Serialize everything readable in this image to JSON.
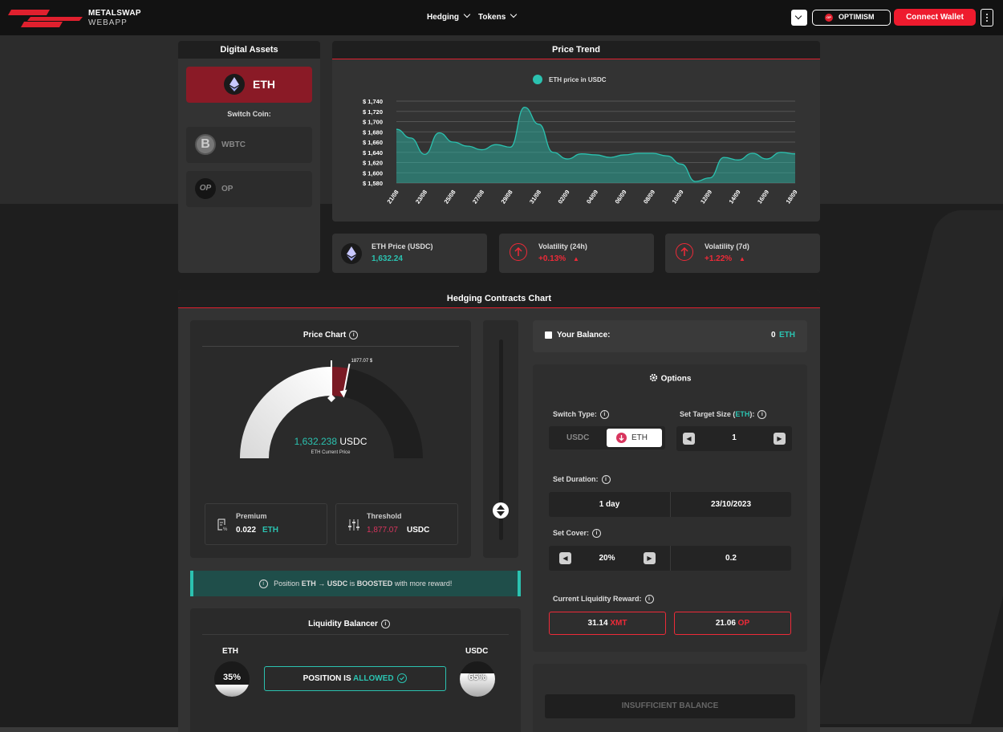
{
  "header": {
    "brand_line1": "METALSWAP",
    "brand_line2": "WEBAPP",
    "nav": [
      {
        "label": "Hedging"
      },
      {
        "label": "Tokens"
      }
    ],
    "network_label": "OPTIMISM",
    "network_badge": "OP",
    "connect_label": "Connect Wallet"
  },
  "digital_assets": {
    "title": "Digital Assets",
    "selected_coin": "ETH",
    "switch_label": "Switch Coin:",
    "coins": [
      {
        "label": "WBTC",
        "icon": "B"
      },
      {
        "label": "OP",
        "icon": "OP"
      }
    ]
  },
  "price_trend": {
    "title": "Price Trend",
    "legend": "ETH price in USDC"
  },
  "chart_data": {
    "type": "area",
    "series": [
      {
        "name": "ETH price in USDC",
        "values": [
          1685,
          1668,
          1636,
          1678,
          1660,
          1652,
          1645,
          1655,
          1650,
          1728,
          1695,
          1640,
          1627,
          1637,
          1635,
          1630,
          1635,
          1638,
          1638,
          1633,
          1617,
          1583,
          1590,
          1630,
          1625,
          1638,
          1627,
          1640,
          1637
        ]
      }
    ],
    "x_ticks": [
      "21/08",
      "23/08",
      "25/08",
      "27/08",
      "29/08",
      "31/08",
      "02/09",
      "04/09",
      "06/09",
      "08/09",
      "10/09",
      "12/09",
      "14/09",
      "16/09",
      "18/09"
    ],
    "y_ticks": [
      "$ 1,580",
      "$ 1,600",
      "$ 1,620",
      "$ 1,640",
      "$ 1,660",
      "$ 1,680",
      "$ 1,700",
      "$ 1,720",
      "$ 1,740"
    ],
    "ylim": [
      1580,
      1740
    ],
    "grid": true,
    "legend_position": "top",
    "colors": {
      "line": "#2bc2b0",
      "fill": "#2bc2b0"
    }
  },
  "stats": [
    {
      "label": "ETH Price (USDC)",
      "value": "1,632.24",
      "arrow": ""
    },
    {
      "label": "Volatility (24h)",
      "value": "+0.13%",
      "arrow": "▲"
    },
    {
      "label": "Volatility (7d)",
      "value": "+1.22%",
      "arrow": "▲"
    }
  ],
  "hedging": {
    "title": "Hedging Contracts Chart",
    "price_chart_title": "Price Chart",
    "gauge_marker": "1877.07 $",
    "current_price_value": "1,632.238",
    "current_price_unit": "USDC",
    "current_price_caption": "ETH Current Price",
    "gauge_threshold_fraction": 0.56,
    "gauge_current_fraction": 0.5,
    "premium_label": "Premium",
    "premium_value": "0.022",
    "premium_unit": "ETH",
    "threshold_label": "Threshold",
    "threshold_value": "1,877.07",
    "threshold_unit": "USDC",
    "boost_pre": "Position",
    "boost_from": "ETH",
    "boost_arrow": "→",
    "boost_to": "USDC",
    "boost_is": "is",
    "boost_word": "BOOSTED",
    "boost_post": "with more reward!",
    "liquidity_title": "Liquidity Balancer",
    "eth_label": "ETH",
    "eth_pct": "35%",
    "eth_fraction": 0.35,
    "usdc_label": "USDC",
    "usdc_pct": "65%",
    "usdc_fraction": 0.65,
    "position_text": "POSITION IS",
    "position_state": "ALLOWED"
  },
  "balance": {
    "label": "Your Balance:",
    "value": "0",
    "unit": "ETH"
  },
  "options": {
    "title": "Options",
    "switch_type_label": "Switch Type:",
    "type_a": "USDC",
    "type_b": "ETH",
    "target_label_pre": "Set Target Size (",
    "target_label_coin": "ETH",
    "target_label_post": "):",
    "target_value": "1",
    "duration_label": "Set Duration:",
    "duration_value": "1 day",
    "duration_date": "23/10/2023",
    "cover_label": "Set Cover:",
    "cover_value": "20%",
    "cover_amount": "0.2",
    "reward_label": "Current Liquidity Reward:",
    "reward_1_value": "31.14",
    "reward_1_unit": "XMT",
    "reward_2_value": "21.06",
    "reward_2_unit": "OP"
  },
  "submit_label": "INSUFFICIENT BALANCE"
}
